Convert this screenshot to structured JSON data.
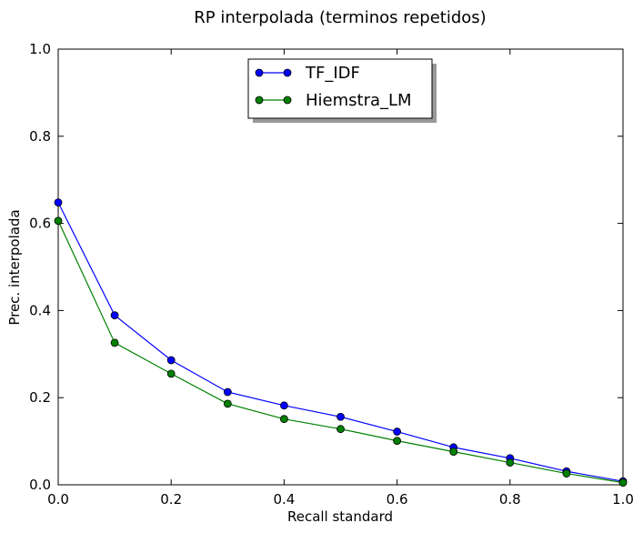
{
  "chart_data": {
    "type": "line",
    "title": "RP interpolada (terminos repetidos)",
    "xlabel": "Recall standard",
    "ylabel": "Prec. interpolada",
    "xlim": [
      0.0,
      1.0
    ],
    "ylim": [
      0.0,
      1.0
    ],
    "x_ticks": [
      "0.0",
      "0.2",
      "0.4",
      "0.6",
      "0.8",
      "1.0"
    ],
    "y_ticks": [
      "0.0",
      "0.2",
      "0.4",
      "0.6",
      "0.8",
      "1.0"
    ],
    "grid": false,
    "legend_position": "upper-center",
    "x": [
      0.0,
      0.1,
      0.2,
      0.3,
      0.4,
      0.5,
      0.6,
      0.7,
      0.8,
      0.9,
      1.0
    ],
    "series": [
      {
        "name": "TF_IDF",
        "color": "#0000ff",
        "values": [
          0.648,
          0.389,
          0.286,
          0.213,
          0.182,
          0.156,
          0.122,
          0.086,
          0.061,
          0.031,
          0.008
        ]
      },
      {
        "name": "Hiemstra_LM",
        "color": "#008000",
        "values": [
          0.606,
          0.326,
          0.255,
          0.186,
          0.151,
          0.128,
          0.101,
          0.076,
          0.051,
          0.026,
          0.005
        ]
      }
    ]
  }
}
